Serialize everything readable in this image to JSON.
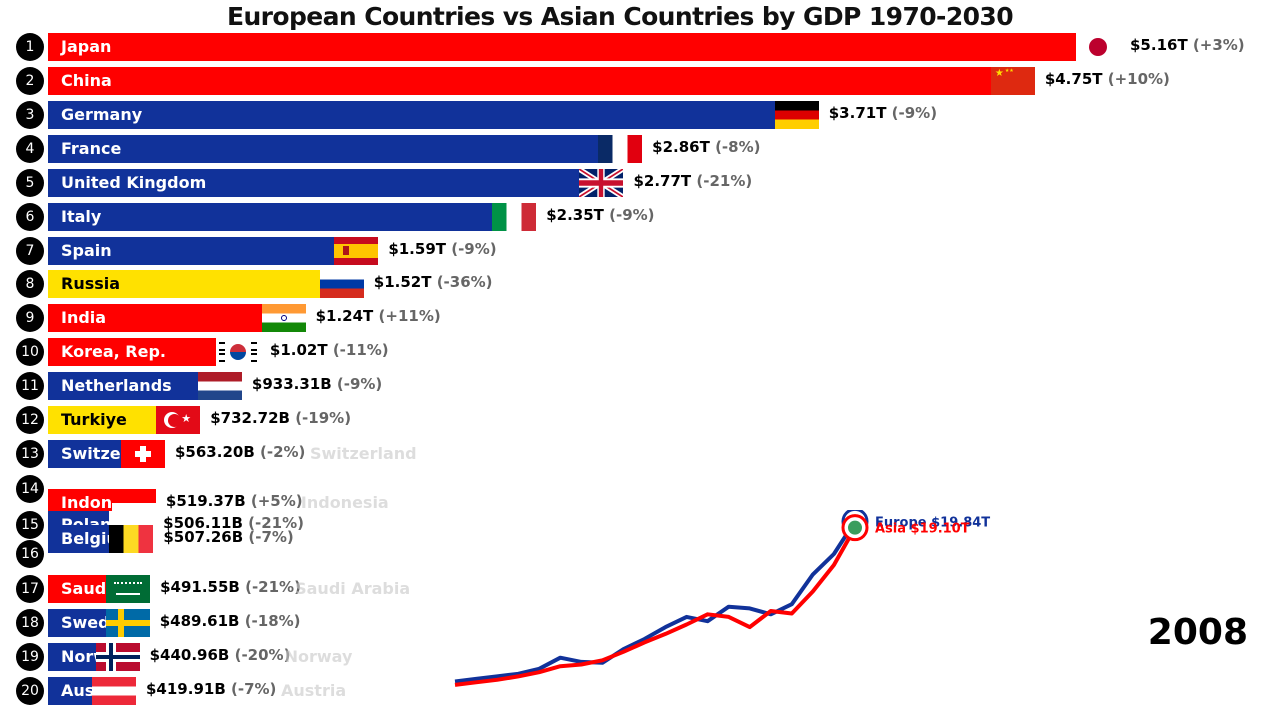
{
  "title": "European Countries vs Asian Countries by GDP 1970-2030",
  "year": "2008",
  "colors": {
    "asia": "#ff0000",
    "europe": "#11329a",
    "both": "#ffe100"
  },
  "chart_data": [
    {
      "type": "bar",
      "title": "European Countries vs Asian Countries by GDP 1970-2030",
      "xlabel": "",
      "ylabel": "",
      "unit": "USD",
      "bars": [
        {
          "rank": "1",
          "name": "Japan",
          "value_label": "$5.16T",
          "change": "(+3%)",
          "value": 5.16,
          "region": "asia",
          "flag": "japan"
        },
        {
          "rank": "2",
          "name": "China",
          "value_label": "$4.75T",
          "change": "(+10%)",
          "value": 4.75,
          "region": "asia",
          "flag": "china"
        },
        {
          "rank": "3",
          "name": "Germany",
          "value_label": "$3.71T",
          "change": "(-9%)",
          "value": 3.71,
          "region": "europe",
          "flag": "germany"
        },
        {
          "rank": "4",
          "name": "France",
          "value_label": "$2.86T",
          "change": "(-8%)",
          "value": 2.86,
          "region": "europe",
          "flag": "france"
        },
        {
          "rank": "5",
          "name": "United Kingdom",
          "value_label": "$2.77T",
          "change": "(-21%)",
          "value": 2.77,
          "region": "europe",
          "flag": "uk"
        },
        {
          "rank": "6",
          "name": "Italy",
          "value_label": "$2.35T",
          "change": "(-9%)",
          "value": 2.35,
          "region": "europe",
          "flag": "italy"
        },
        {
          "rank": "7",
          "name": "Spain",
          "value_label": "$1.59T",
          "change": "(-9%)",
          "value": 1.59,
          "region": "europe",
          "flag": "spain"
        },
        {
          "rank": "8",
          "name": "Russia",
          "value_label": "$1.52T",
          "change": "(-36%)",
          "value": 1.52,
          "region": "both",
          "flag": "russia"
        },
        {
          "rank": "9",
          "name": "India",
          "value_label": "$1.24T",
          "change": "(+11%)",
          "value": 1.24,
          "region": "asia",
          "flag": "india"
        },
        {
          "rank": "10",
          "name": "Korea, Rep.",
          "value_label": "$1.02T",
          "change": "(-11%)",
          "value": 1.02,
          "region": "asia",
          "flag": "korea"
        },
        {
          "rank": "11",
          "name": "Netherlands",
          "value_label": "$933.31B",
          "change": "(-9%)",
          "value": 0.93331,
          "region": "europe",
          "flag": "netherlands"
        },
        {
          "rank": "12",
          "name": "Turkiye",
          "value_label": "$732.72B",
          "change": "(-19%)",
          "value": 0.73272,
          "region": "both",
          "flag": "turkey"
        },
        {
          "rank": "13",
          "name": "Switzerland",
          "value_label": "$563.20B",
          "change": "(-2%)",
          "value": 0.5632,
          "region": "europe",
          "flag": "switzerland"
        },
        {
          "rank": "14",
          "name": "Indonesia",
          "value_label": "$519.37B",
          "change": "(+5%)",
          "value": 0.51937,
          "region": "asia",
          "flag": "indonesia"
        },
        {
          "rank": "15",
          "name": "Poland",
          "value_label": "$506.11B",
          "change": "(-21%)",
          "value": 0.50611,
          "region": "europe",
          "flag": "poland"
        },
        {
          "rank": "16",
          "name": "Belgium",
          "value_label": "$507.26B",
          "change": "(-7%)",
          "value": 0.50726,
          "region": "europe",
          "flag": "belgium"
        },
        {
          "rank": "17",
          "name": "Saudi Arabia",
          "value_label": "$491.55B",
          "change": "(-21%)",
          "value": 0.49155,
          "region": "asia",
          "flag": "saudi"
        },
        {
          "rank": "18",
          "name": "Sweden",
          "value_label": "$489.61B",
          "change": "(-18%)",
          "value": 0.48961,
          "region": "europe",
          "flag": "sweden"
        },
        {
          "rank": "19",
          "name": "Norway",
          "value_label": "$440.96B",
          "change": "(-20%)",
          "value": 0.44096,
          "region": "europe",
          "flag": "norway"
        },
        {
          "rank": "20",
          "name": "Austria",
          "value_label": "$419.91B",
          "change": "(-7%)",
          "value": 0.41991,
          "region": "europe",
          "flag": "austria"
        }
      ]
    },
    {
      "type": "line",
      "xlabel": "",
      "ylabel": "",
      "x": [
        1970,
        1972,
        1974,
        1976,
        1978,
        1980,
        1982,
        1984,
        1986,
        1988,
        1990,
        1992,
        1994,
        1996,
        1998,
        2000,
        2002,
        2004,
        2006,
        2008
      ],
      "xlim": [
        1970,
        2008
      ],
      "ylim": [
        0,
        20
      ],
      "series": [
        {
          "name": "Europe",
          "label": "Europe $19.84T",
          "color": "#11329a",
          "values": [
            1.0,
            1.3,
            1.6,
            1.9,
            2.5,
            3.8,
            3.3,
            3.2,
            4.8,
            6.0,
            7.4,
            8.6,
            8.1,
            9.8,
            9.6,
            8.9,
            10.1,
            13.6,
            16.0,
            19.84
          ]
        },
        {
          "name": "Asia",
          "label": "Asia $19.10T",
          "color": "#ff0000",
          "values": [
            0.6,
            0.9,
            1.2,
            1.6,
            2.1,
            2.8,
            3.0,
            3.5,
            4.5,
            5.6,
            6.6,
            7.7,
            8.9,
            8.6,
            7.4,
            9.3,
            9.0,
            11.6,
            14.7,
            19.1
          ]
        }
      ]
    }
  ]
}
